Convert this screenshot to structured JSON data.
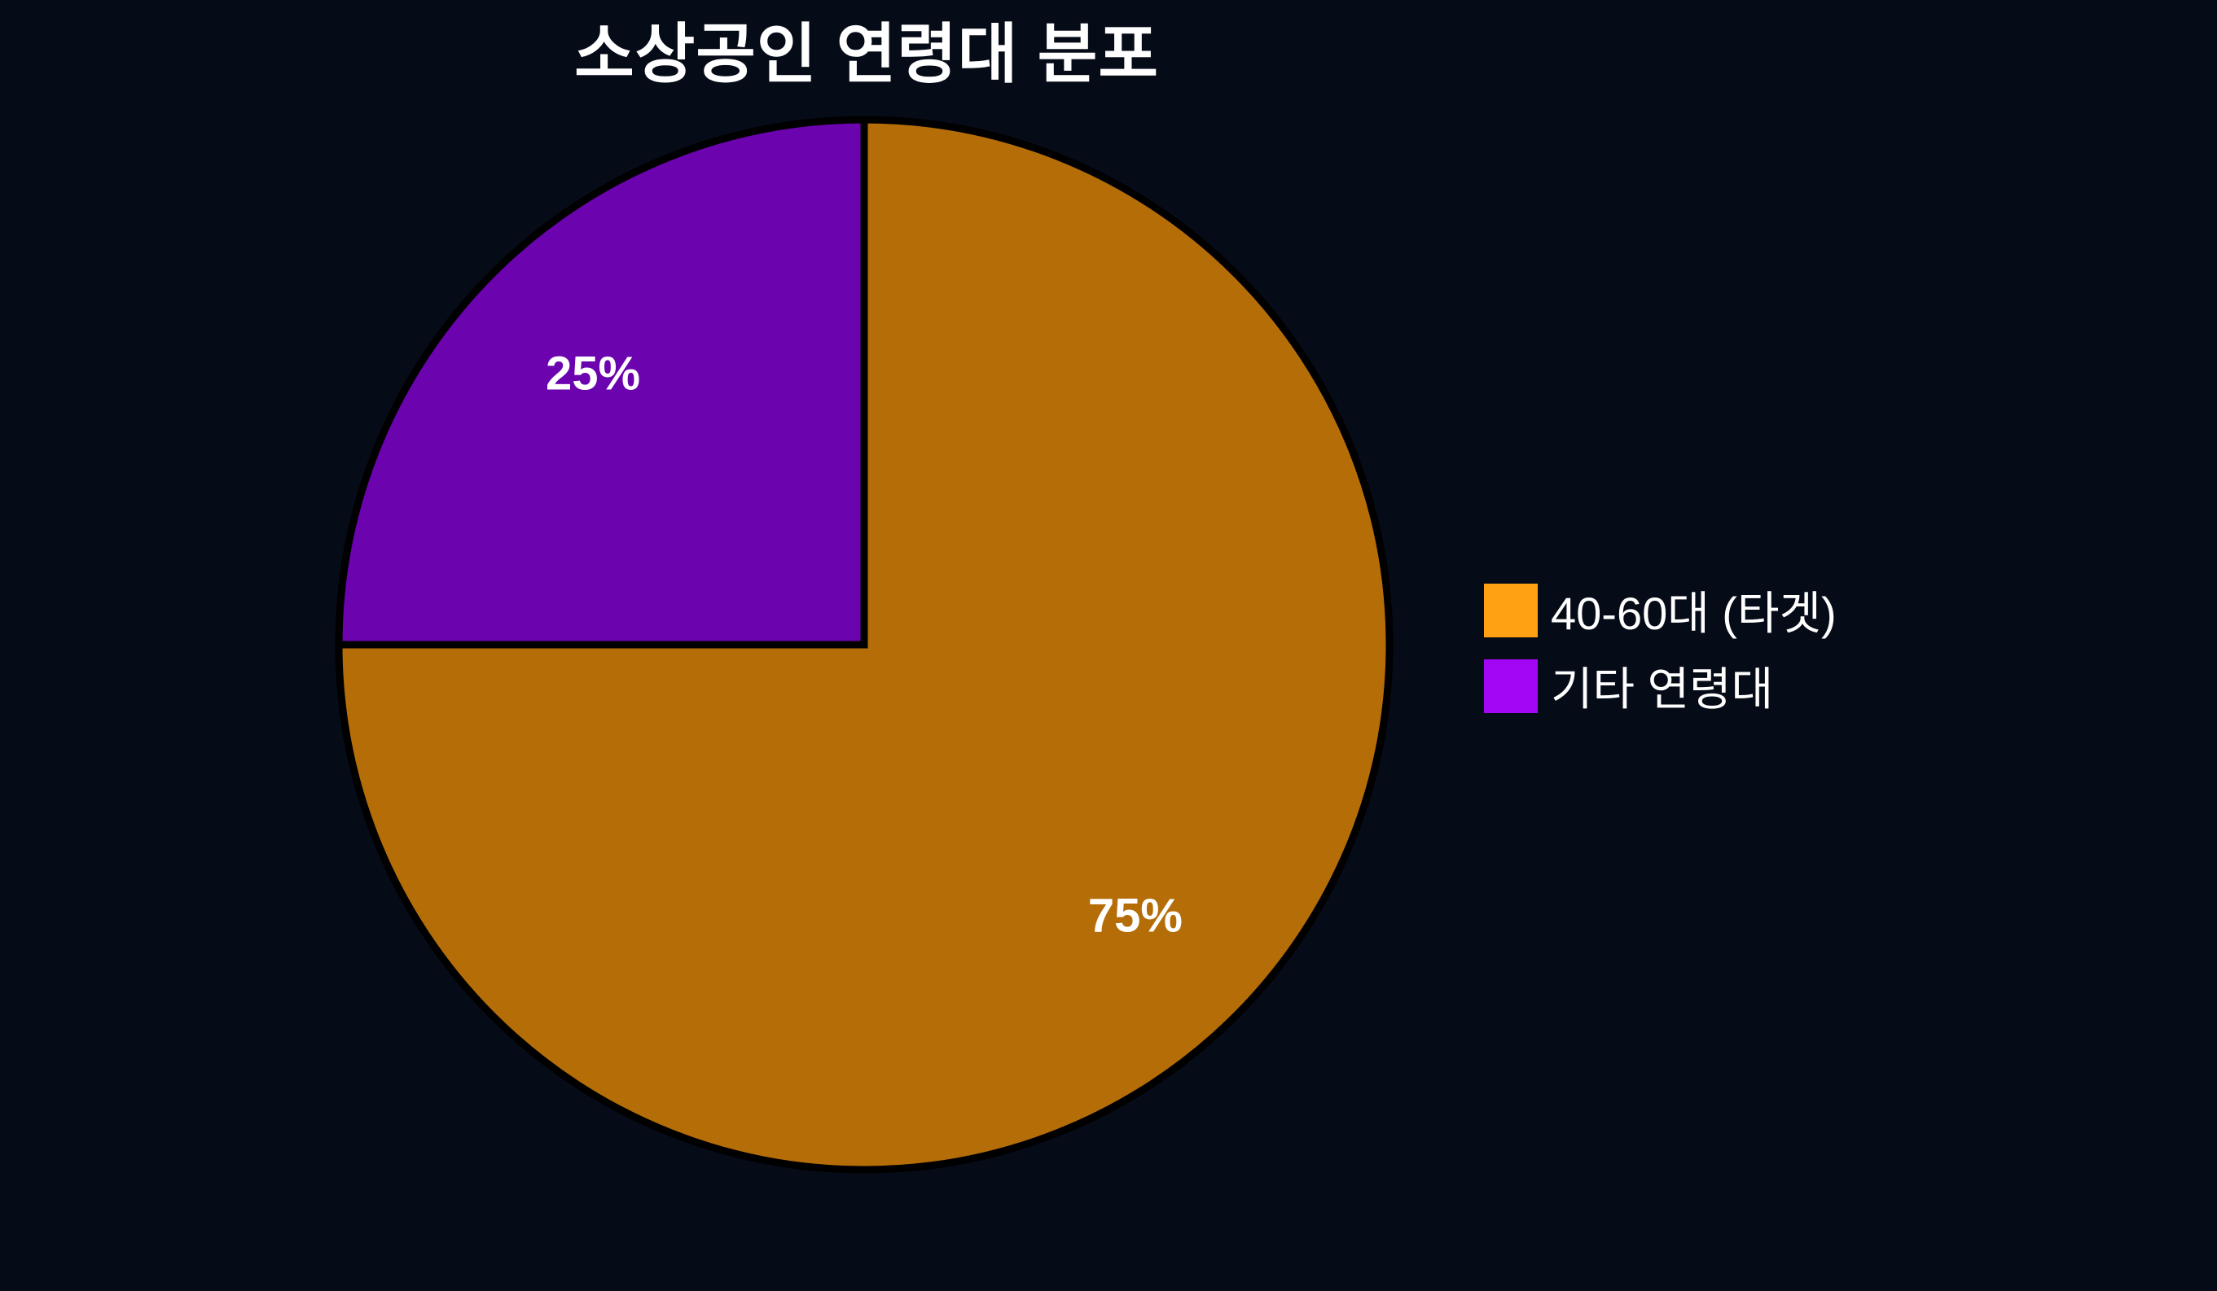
{
  "title": "소상공인 연령대 분포",
  "colors": {
    "background": "#060B18",
    "wedge_outline": "#000000",
    "text": "#FFFFFF"
  },
  "chart_data": {
    "type": "pie",
    "title": "소상공인 연령대 분포",
    "labels": [
      "40-60대 (타겟)",
      "기타 연령대"
    ],
    "values": [
      75,
      25
    ],
    "unit": "percent",
    "pct_labels": [
      "75%",
      "25%"
    ],
    "slice_colors": [
      "#B56D08",
      "#6B03AF"
    ],
    "legend_colors": [
      "#FFA113",
      "#A107F5"
    ],
    "start_angle_deg_from_top": 0,
    "direction": "clockwise",
    "label_distance_ratio": 0.73,
    "legend_position": "right",
    "grid": false
  },
  "legend": {
    "items": [
      {
        "label": "40-60대 (타겟)",
        "color": "#FFA113"
      },
      {
        "label": "기타 연령대",
        "color": "#A107F5"
      }
    ]
  }
}
